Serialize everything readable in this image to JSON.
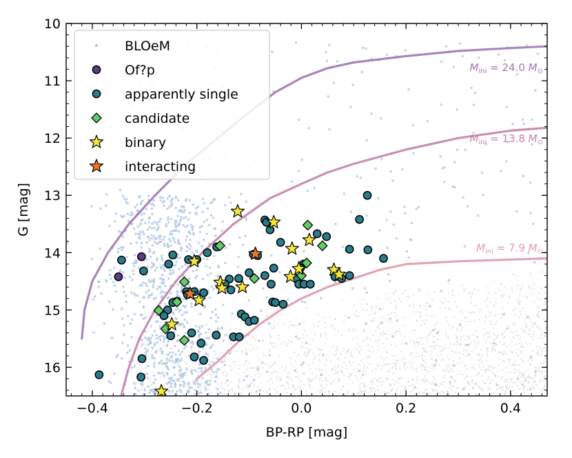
{
  "chart_data": {
    "type": "scatter",
    "title": "",
    "xlabel": "BP-RP [mag]",
    "ylabel": "G [mag]",
    "xlim": [
      -0.45,
      0.47
    ],
    "ylim": [
      16.5,
      10.0
    ],
    "y_inverted": true,
    "x_ticks": [
      -0.4,
      -0.2,
      0.0,
      0.2,
      0.4
    ],
    "x_tick_labels": [
      "−0.4",
      "−0.2",
      "0.0",
      "0.2",
      "0.4"
    ],
    "y_ticks": [
      10,
      11,
      12,
      13,
      14,
      15,
      16
    ],
    "y_tick_labels": [
      "10",
      "11",
      "12",
      "13",
      "14",
      "15",
      "16"
    ],
    "legend_position": "top-left",
    "legend": [
      {
        "label": "BLOeM",
        "marker": "dot",
        "color": "#aec6e3"
      },
      {
        "label": "Of?p",
        "marker": "circle",
        "color": "#5b3a8a"
      },
      {
        "label": "apparently single",
        "marker": "circle",
        "color": "#2a7b8c"
      },
      {
        "label": "candidate",
        "marker": "diamond",
        "color": "#66cc66"
      },
      {
        "label": "binary",
        "marker": "star",
        "color": "#f5e63a"
      },
      {
        "label": "interacting",
        "marker": "star",
        "color": "#e8782a"
      }
    ],
    "tracks": [
      {
        "name": "24.0",
        "label": "M_ini = 24.0 M_sun",
        "color": "#a178b4",
        "points": [
          [
            -0.42,
            15.5
          ],
          [
            -0.415,
            15.0
          ],
          [
            -0.4,
            14.5
          ],
          [
            -0.37,
            14.0
          ],
          [
            -0.33,
            13.5
          ],
          [
            -0.28,
            13.0
          ],
          [
            -0.22,
            12.45
          ],
          [
            -0.16,
            12.0
          ],
          [
            -0.1,
            11.55
          ],
          [
            -0.05,
            11.2
          ],
          [
            0.0,
            10.95
          ],
          [
            0.05,
            10.78
          ],
          [
            0.1,
            10.68
          ],
          [
            0.2,
            10.57
          ],
          [
            0.3,
            10.48
          ],
          [
            0.4,
            10.43
          ],
          [
            0.47,
            10.4
          ]
        ]
      },
      {
        "name": "13.8",
        "label": "M_ini = 13.8 M_sun",
        "color": "#c283a9",
        "points": [
          [
            -0.345,
            16.5
          ],
          [
            -0.33,
            16.0
          ],
          [
            -0.31,
            15.5
          ],
          [
            -0.28,
            15.0
          ],
          [
            -0.24,
            14.5
          ],
          [
            -0.19,
            14.0
          ],
          [
            -0.13,
            13.5
          ],
          [
            -0.06,
            13.05
          ],
          [
            0.0,
            12.8
          ],
          [
            0.05,
            12.6
          ],
          [
            0.1,
            12.45
          ],
          [
            0.2,
            12.2
          ],
          [
            0.3,
            12.0
          ],
          [
            0.4,
            11.87
          ],
          [
            0.47,
            11.82
          ]
        ]
      },
      {
        "name": "7.9",
        "label": "M_ini = 7.9 M_sun",
        "color": "#e09aa8",
        "points": [
          [
            -0.2,
            16.2
          ],
          [
            -0.16,
            15.9
          ],
          [
            -0.12,
            15.55
          ],
          [
            -0.08,
            15.25
          ],
          [
            -0.04,
            15.0
          ],
          [
            0.0,
            14.8
          ],
          [
            0.05,
            14.6
          ],
          [
            0.1,
            14.45
          ],
          [
            0.15,
            14.3
          ],
          [
            0.2,
            14.2
          ],
          [
            0.3,
            14.15
          ],
          [
            0.4,
            14.12
          ],
          [
            0.47,
            14.1
          ]
        ]
      }
    ],
    "series": [
      {
        "name": "Of?p",
        "marker": "circle",
        "color": "#5b3a8a",
        "points": [
          [
            -0.306,
            14.07
          ],
          [
            -0.35,
            14.42
          ]
        ]
      },
      {
        "name": "apparently single",
        "marker": "circle",
        "color": "#2a7b8c",
        "points": [
          [
            -0.344,
            14.13
          ],
          [
            -0.302,
            14.32
          ],
          [
            -0.254,
            14.2
          ],
          [
            -0.246,
            14.04
          ],
          [
            -0.216,
            14.12
          ],
          [
            -0.2,
            14.12
          ],
          [
            -0.18,
            14.0
          ],
          [
            -0.162,
            13.9
          ],
          [
            -0.22,
            14.68
          ],
          [
            -0.238,
            14.85
          ],
          [
            -0.246,
            14.87
          ],
          [
            -0.218,
            14.73
          ],
          [
            -0.205,
            14.68
          ],
          [
            -0.187,
            14.7
          ],
          [
            -0.256,
            15.0
          ],
          [
            -0.263,
            15.1
          ],
          [
            -0.25,
            15.45
          ],
          [
            -0.21,
            15.4
          ],
          [
            -0.192,
            15.58
          ],
          [
            -0.163,
            15.44
          ],
          [
            -0.138,
            14.46
          ],
          [
            -0.12,
            14.45
          ],
          [
            -0.146,
            14.55
          ],
          [
            -0.135,
            14.65
          ],
          [
            -0.115,
            15.07
          ],
          [
            -0.108,
            15.12
          ],
          [
            -0.1,
            15.2
          ],
          [
            -0.09,
            15.18
          ],
          [
            -0.13,
            15.47
          ],
          [
            -0.119,
            15.47
          ],
          [
            -0.07,
            13.43
          ],
          [
            -0.067,
            13.47
          ],
          [
            -0.06,
            13.6
          ],
          [
            -0.04,
            13.82
          ],
          [
            -0.092,
            14.03
          ],
          [
            -0.084,
            14.05
          ],
          [
            -0.07,
            14.4
          ],
          [
            -0.058,
            14.55
          ],
          [
            -0.055,
            14.86
          ],
          [
            -0.05,
            14.87
          ],
          [
            -0.035,
            14.9
          ],
          [
            -0.01,
            14.45
          ],
          [
            -0.005,
            14.55
          ],
          [
            0.005,
            14.55
          ],
          [
            0.017,
            14.55
          ],
          [
            0.004,
            14.2
          ],
          [
            -0.002,
            14.27
          ],
          [
            0.03,
            13.67
          ],
          [
            0.048,
            13.72
          ],
          [
            0.064,
            14.42
          ],
          [
            0.077,
            14.45
          ],
          [
            0.092,
            14.4
          ],
          [
            0.092,
            13.94
          ],
          [
            0.111,
            13.42
          ],
          [
            0.126,
            13.0
          ],
          [
            0.127,
            13.95
          ],
          [
            0.157,
            14.1
          ],
          [
            -0.305,
            15.85
          ],
          [
            -0.205,
            15.82
          ],
          [
            -0.187,
            15.88
          ],
          [
            -0.387,
            16.13
          ],
          [
            -0.307,
            16.17
          ],
          [
            -0.053,
            14.27
          ],
          [
            -0.1,
            14.35
          ]
        ]
      },
      {
        "name": "candidate",
        "marker": "diamond",
        "color": "#66cc66",
        "points": [
          [
            -0.224,
            14.51
          ],
          [
            -0.238,
            14.86
          ],
          [
            -0.273,
            15.01
          ],
          [
            -0.26,
            15.33
          ],
          [
            -0.224,
            15.53
          ],
          [
            -0.156,
            13.88
          ],
          [
            -0.09,
            14.45
          ],
          [
            0.0,
            14.4
          ],
          [
            0.01,
            14.18
          ],
          [
            0.012,
            13.52
          ],
          [
            0.04,
            13.88
          ]
        ]
      },
      {
        "name": "binary",
        "marker": "star",
        "color": "#f5e63a",
        "points": [
          [
            -0.122,
            13.28
          ],
          [
            -0.053,
            13.47
          ],
          [
            -0.018,
            13.93
          ],
          [
            -0.021,
            14.42
          ],
          [
            -0.005,
            14.28
          ],
          [
            0.015,
            13.78
          ],
          [
            -0.205,
            14.15
          ],
          [
            -0.196,
            14.83
          ],
          [
            -0.155,
            14.52
          ],
          [
            -0.152,
            14.62
          ],
          [
            -0.113,
            14.6
          ],
          [
            -0.248,
            15.25
          ],
          [
            -0.268,
            16.42
          ],
          [
            0.062,
            14.3
          ],
          [
            0.072,
            14.38
          ]
        ]
      },
      {
        "name": "interacting",
        "marker": "star",
        "color": "#e8782a",
        "points": [
          [
            -0.213,
            14.72
          ],
          [
            -0.088,
            14.02
          ]
        ]
      }
    ],
    "bloem_cloud_color": "#aec6e3",
    "background_cloud_color": "#bdbdbd"
  }
}
